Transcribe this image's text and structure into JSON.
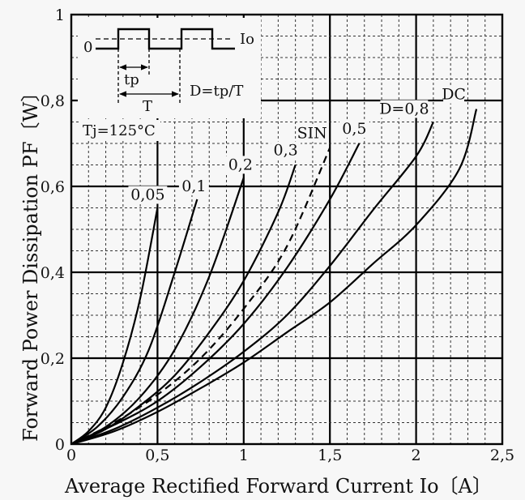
{
  "chart_data": {
    "type": "line",
    "xlabel": "Average Rectified Forward Current  Io〔A〕",
    "ylabel": "Forward Power Dissipation  PF〔W〕",
    "xlim": [
      0,
      2.5
    ],
    "ylim": [
      0,
      1.0
    ],
    "x_ticks": [
      "0",
      "0,5",
      "1",
      "1,5",
      "2",
      "2,5"
    ],
    "y_ticks": [
      "0",
      "0,2",
      "0,4",
      "0,6",
      "0,8",
      "1"
    ],
    "grid": true,
    "annotation": "Tj=125°C",
    "inset": {
      "zero_label": "0",
      "current_label": "Io",
      "tp_label": "tp",
      "period_label": "T",
      "duty_formula": "D=tp/T"
    },
    "series": [
      {
        "name": "0,05",
        "style": "solid",
        "x": [
          0,
          0.1,
          0.2,
          0.3,
          0.4,
          0.5
        ],
        "y": [
          0,
          0.03,
          0.085,
          0.19,
          0.34,
          0.55
        ]
      },
      {
        "name": "0,1",
        "style": "solid",
        "x": [
          0,
          0.15,
          0.3,
          0.45,
          0.6,
          0.73
        ],
        "y": [
          0,
          0.04,
          0.11,
          0.22,
          0.4,
          0.57
        ]
      },
      {
        "name": "0,2",
        "style": "solid",
        "x": [
          0,
          0.2,
          0.4,
          0.6,
          0.8,
          1.0
        ],
        "y": [
          0,
          0.04,
          0.11,
          0.22,
          0.39,
          0.62
        ]
      },
      {
        "name": "0,3",
        "style": "solid",
        "x": [
          0,
          0.2,
          0.4,
          0.6,
          0.8,
          1.0,
          1.2,
          1.3
        ],
        "y": [
          0,
          0.035,
          0.09,
          0.16,
          0.26,
          0.38,
          0.54,
          0.65
        ]
      },
      {
        "name": "SIN",
        "style": "dashed",
        "x": [
          0,
          0.25,
          0.5,
          0.75,
          1.0,
          1.25,
          1.5
        ],
        "y": [
          0,
          0.05,
          0.115,
          0.2,
          0.315,
          0.46,
          0.69
        ]
      },
      {
        "name": "0,5",
        "style": "solid",
        "x": [
          0,
          0.25,
          0.5,
          0.75,
          1.0,
          1.25,
          1.5,
          1.67
        ],
        "y": [
          0,
          0.045,
          0.1,
          0.18,
          0.28,
          0.41,
          0.57,
          0.7
        ]
      },
      {
        "name": "D=0,8",
        "style": "solid",
        "x": [
          0,
          0.25,
          0.5,
          0.75,
          1.0,
          1.25,
          1.5,
          1.75,
          2.0,
          2.1
        ],
        "y": [
          0,
          0.035,
          0.085,
          0.145,
          0.215,
          0.3,
          0.415,
          0.545,
          0.67,
          0.75
        ]
      },
      {
        "name": "DC",
        "style": "solid",
        "x": [
          0,
          0.25,
          0.5,
          0.75,
          1.0,
          1.25,
          1.5,
          1.75,
          2.0,
          2.25,
          2.35
        ],
        "y": [
          0,
          0.03,
          0.075,
          0.13,
          0.19,
          0.26,
          0.33,
          0.42,
          0.51,
          0.64,
          0.78
        ]
      }
    ]
  }
}
